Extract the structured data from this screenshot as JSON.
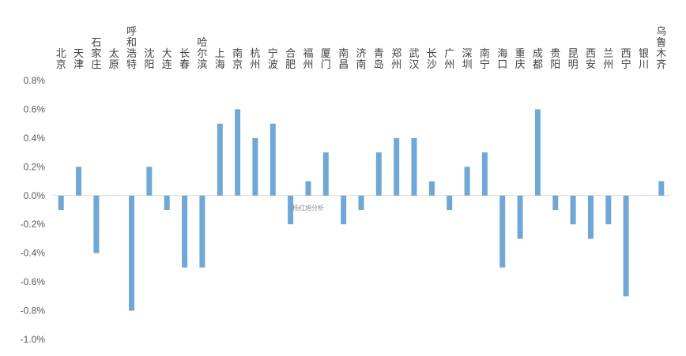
{
  "chart_data": {
    "type": "bar",
    "title": "",
    "xlabel": "",
    "ylabel": "",
    "ylim": [
      -0.01,
      0.008
    ],
    "yticks": [
      "0.8%",
      "0.6%",
      "0.4%",
      "0.2%",
      "0.0%",
      "-0.2%",
      "-0.4%",
      "-0.6%",
      "-0.8%",
      "-1.0%"
    ],
    "grid": false,
    "legend": "none",
    "bar_color": "#6fa8d6",
    "categories": [
      "北京",
      "天津",
      "石家庄",
      "太原",
      "呼和浩特",
      "沈阳",
      "大连",
      "长春",
      "哈尔滨",
      "上海",
      "南京",
      "杭州",
      "宁波",
      "合肥",
      "福州",
      "厦门",
      "南昌",
      "济南",
      "青岛",
      "郑州",
      "武汉",
      "长沙",
      "广州",
      "深圳",
      "南宁",
      "海口",
      "重庆",
      "成都",
      "贵阳",
      "昆明",
      "西安",
      "兰州",
      "西宁",
      "银川",
      "乌鲁木齐"
    ],
    "values": [
      -0.001,
      0.002,
      -0.004,
      0,
      -0.008,
      0.002,
      -0.001,
      -0.005,
      -0.005,
      0.005,
      0.006,
      0.004,
      0.005,
      -0.002,
      0.001,
      0.003,
      -0.002,
      -0.001,
      0.003,
      0.004,
      0.004,
      0.001,
      -0.001,
      0.002,
      0.003,
      -0.005,
      -0.003,
      0.006,
      -0.001,
      -0.002,
      -0.003,
      -0.002,
      -0.007,
      0,
      0.001
    ],
    "watermark": "杨红旭分析"
  }
}
